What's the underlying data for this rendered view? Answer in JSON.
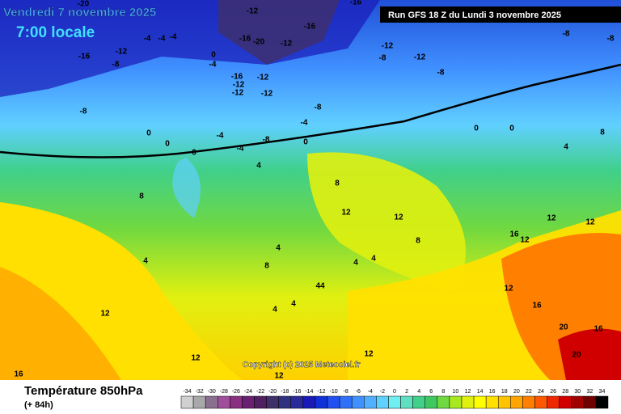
{
  "header": {
    "date": "Vendredi 7 novembre 2025",
    "time": "7:00 locale",
    "run": "Run GFS 18 Z du Lundi 3 novembre 2025"
  },
  "copyright": "Copyright (c) 2025 Meteociel.fr",
  "footer": {
    "title": "Température 850hPa",
    "lead": "(+ 84h)"
  },
  "scale": {
    "ticks": [
      -34,
      -32,
      -30,
      -28,
      -26,
      -24,
      -22,
      -20,
      -18,
      -16,
      -14,
      -12,
      -10,
      -8,
      -6,
      -4,
      -2,
      0,
      2,
      4,
      6,
      8,
      10,
      12,
      14,
      16,
      18,
      20,
      22,
      24,
      26,
      28,
      30,
      32,
      34
    ],
    "colors": [
      "#d0d0d0",
      "#a8a8a8",
      "#8a7090",
      "#a0509a",
      "#8a3080",
      "#6a2070",
      "#502060",
      "#40306a",
      "#303080",
      "#2a2a9a",
      "#1a1ab8",
      "#1030d8",
      "#2050f0",
      "#3070f8",
      "#4090ff",
      "#50b0ff",
      "#60d0ff",
      "#70eef0",
      "#60e0c0",
      "#40d08a",
      "#40c860",
      "#70d840",
      "#a8e820",
      "#e0f010",
      "#ffff00",
      "#ffe000",
      "#ffc400",
      "#ffa400",
      "#ff8000",
      "#ff5800",
      "#f02800",
      "#d00000",
      "#a00000",
      "#700000",
      "#000000"
    ]
  },
  "contour_labels": [
    -20,
    -12,
    -16,
    -16,
    -20,
    -16,
    -12,
    -12,
    -12,
    -8,
    -8,
    -8,
    -8,
    -16,
    -12,
    -8,
    -4,
    -4,
    -4,
    0,
    -4,
    -16,
    -12,
    -12,
    -12,
    -12,
    -8,
    -8,
    -4,
    -4,
    -4,
    -8,
    0,
    0,
    0,
    0,
    0,
    0,
    8,
    4,
    8,
    8,
    12,
    12,
    8,
    12,
    12,
    16,
    12,
    4,
    8,
    4,
    4,
    4,
    44,
    4,
    4,
    12,
    12,
    16,
    20,
    16,
    20,
    12,
    12,
    12,
    16,
    4
  ]
}
